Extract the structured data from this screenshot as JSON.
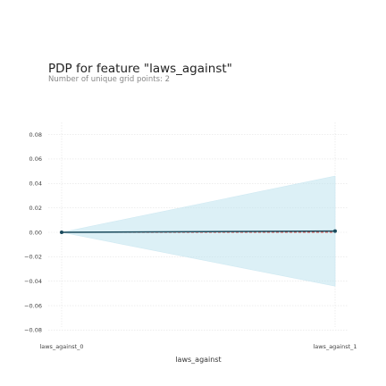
{
  "chart_data": {
    "type": "line",
    "title": "PDP for feature \"laws_against\"",
    "subtitle": "Number of unique grid points: 2",
    "xlabel": "laws_against",
    "ylabel": "",
    "categories": [
      "laws_against_0",
      "laws_against_1"
    ],
    "series": [
      {
        "values": [
          0.0,
          0.001
        ],
        "upper": [
          0.0,
          0.046
        ],
        "lower": [
          0.0,
          -0.044
        ]
      }
    ],
    "baseline": 0.0,
    "ylim": [
      -0.08,
      0.08
    ],
    "yticks": [
      -0.08,
      -0.06,
      -0.04,
      -0.02,
      0.0,
      0.02,
      0.04,
      0.06,
      0.08
    ],
    "ytick_labels": [
      "−0.08",
      "−0.06",
      "−0.04",
      "−0.02",
      "0.00",
      "0.02",
      "0.04",
      "0.06",
      "0.08"
    ],
    "grid": true,
    "colors": {
      "line": "#1a4a5c",
      "band": "#bfe3ef",
      "baseline": "#d9534f",
      "grid": "#e3e3e3"
    }
  }
}
